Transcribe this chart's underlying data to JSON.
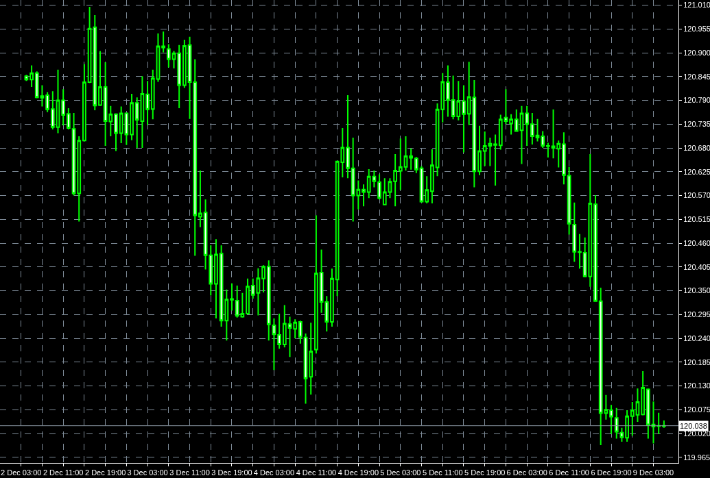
{
  "chart_data": {
    "type": "candlestick",
    "categories": [
      "2 Dec 03:00",
      null,
      null,
      null,
      null,
      null,
      null,
      null,
      "2 Dec 11:00",
      null,
      null,
      null,
      null,
      null,
      null,
      null,
      "2 Dec 19:00",
      null,
      null,
      null,
      null,
      null,
      null,
      null,
      "3 Dec 03:00",
      null,
      null,
      null,
      null,
      null,
      null,
      null,
      "3 Dec 11:00",
      null,
      null,
      null,
      null,
      null,
      null,
      null,
      "3 Dec 19:00",
      null,
      null,
      null,
      null,
      null,
      null,
      null,
      "4 Dec 03:00",
      null,
      null,
      null,
      null,
      null,
      null,
      null,
      "4 Dec 11:00",
      null,
      null,
      null,
      null,
      null,
      null,
      null,
      "4 Dec 19:00",
      null,
      null,
      null,
      null,
      null,
      null,
      null,
      "5 Dec 03:00",
      null,
      null,
      null,
      null,
      null,
      null,
      null,
      "5 Dec 11:00",
      null,
      null,
      null,
      null,
      null,
      null,
      null,
      "5 Dec 19:00",
      null,
      null,
      null,
      null,
      null,
      null,
      null,
      "6 Dec 03:00",
      null,
      null,
      null,
      null,
      null,
      null,
      null,
      "6 Dec 11:00",
      null,
      null,
      null,
      null,
      null,
      null,
      null,
      "6 Dec 19:00",
      null,
      null,
      null,
      null,
      null,
      null,
      null,
      "9 Dec 03:00",
      null,
      null
    ],
    "color": "#00ff00",
    "ohlc": [
      null,
      [
        120.846,
        120.849,
        120.835,
        120.838
      ],
      [
        120.838,
        120.871,
        120.821,
        120.853
      ],
      [
        120.853,
        120.857,
        120.795,
        120.797
      ],
      [
        120.8,
        120.825,
        120.776,
        120.796
      ],
      [
        120.802,
        120.809,
        120.763,
        120.769
      ],
      [
        120.77,
        120.811,
        120.723,
        120.728
      ],
      [
        120.728,
        120.861,
        120.714,
        120.79
      ],
      [
        120.79,
        120.816,
        120.732,
        120.756
      ],
      [
        120.759,
        120.772,
        120.723,
        120.726
      ],
      [
        120.724,
        120.761,
        120.57,
        120.575
      ],
      [
        120.575,
        120.707,
        120.51,
        120.697
      ],
      [
        120.697,
        120.874,
        120.695,
        120.832
      ],
      [
        120.832,
        121.006,
        120.83,
        120.956
      ],
      [
        120.959,
        120.987,
        120.767,
        120.778
      ],
      [
        120.779,
        120.904,
        120.777,
        120.821
      ],
      [
        120.821,
        120.878,
        120.685,
        120.742
      ],
      [
        120.741,
        120.777,
        120.707,
        120.758
      ],
      [
        120.758,
        120.76,
        120.673,
        120.714
      ],
      [
        120.714,
        120.776,
        120.691,
        120.76
      ],
      [
        120.76,
        120.762,
        120.687,
        120.711
      ],
      [
        120.711,
        120.805,
        120.698,
        120.784
      ],
      [
        120.784,
        120.797,
        120.68,
        120.745
      ],
      [
        120.742,
        120.846,
        120.68,
        120.805
      ],
      [
        120.804,
        120.835,
        120.733,
        120.769
      ],
      [
        120.77,
        120.861,
        120.746,
        120.841
      ],
      [
        120.839,
        120.945,
        120.833,
        120.915
      ],
      [
        120.915,
        120.949,
        120.901,
        120.912
      ],
      [
        120.909,
        120.92,
        120.866,
        120.885
      ],
      [
        120.885,
        120.904,
        120.864,
        120.899
      ],
      [
        120.899,
        120.918,
        120.772,
        120.825
      ],
      [
        120.825,
        120.93,
        120.819,
        120.916
      ],
      [
        120.918,
        120.937,
        120.747,
        120.832
      ],
      [
        120.832,
        120.885,
        120.431,
        120.524
      ],
      [
        120.521,
        120.628,
        120.497,
        120.529
      ],
      [
        120.531,
        120.561,
        120.399,
        120.432
      ],
      [
        120.432,
        120.455,
        120.339,
        120.366
      ],
      [
        120.366,
        120.469,
        120.286,
        120.434
      ],
      [
        120.436,
        120.455,
        120.267,
        120.281
      ],
      [
        120.281,
        120.353,
        120.235,
        120.33
      ],
      [
        120.331,
        120.367,
        120.304,
        120.329
      ],
      [
        120.327,
        120.362,
        120.288,
        120.292
      ],
      [
        120.29,
        120.345,
        120.288,
        120.297
      ],
      [
        120.297,
        120.378,
        120.295,
        120.36
      ],
      [
        120.362,
        120.378,
        120.332,
        120.34
      ],
      [
        120.345,
        120.402,
        120.293,
        120.379
      ],
      [
        120.378,
        120.409,
        120.346,
        120.406
      ],
      [
        120.406,
        120.42,
        120.235,
        120.272
      ],
      [
        120.27,
        120.286,
        120.167,
        120.249
      ],
      [
        120.248,
        120.297,
        120.216,
        120.226
      ],
      [
        120.226,
        120.317,
        120.219,
        120.274
      ],
      [
        120.273,
        120.29,
        120.197,
        120.264
      ],
      [
        120.262,
        120.284,
        120.24,
        120.277
      ],
      [
        120.278,
        120.281,
        120.228,
        120.243
      ],
      [
        120.242,
        120.251,
        120.089,
        120.147
      ],
      [
        120.151,
        120.276,
        120.11,
        120.21
      ],
      [
        120.214,
        120.524,
        120.205,
        120.39
      ],
      [
        120.392,
        120.445,
        120.299,
        120.324
      ],
      [
        120.324,
        120.338,
        120.256,
        120.278
      ],
      [
        120.278,
        120.401,
        120.267,
        120.378
      ],
      [
        120.376,
        120.65,
        120.338,
        120.649
      ],
      [
        120.647,
        120.726,
        120.612,
        120.681
      ],
      [
        120.681,
        120.802,
        120.61,
        120.633
      ],
      [
        120.633,
        120.704,
        120.51,
        120.57
      ],
      [
        120.57,
        120.605,
        120.538,
        120.584
      ],
      [
        120.584,
        120.596,
        120.545,
        120.578
      ],
      [
        120.578,
        120.631,
        120.564,
        120.614
      ],
      [
        120.614,
        120.628,
        120.589,
        120.603
      ],
      [
        120.601,
        120.619,
        120.561,
        120.564
      ],
      [
        120.549,
        120.61,
        120.548,
        120.578
      ],
      [
        120.578,
        120.61,
        120.564,
        120.602
      ],
      [
        120.603,
        120.666,
        120.545,
        120.628
      ],
      [
        120.627,
        120.702,
        120.583,
        120.636
      ],
      [
        120.636,
        120.707,
        120.628,
        120.661
      ],
      [
        120.661,
        120.679,
        120.63,
        120.657
      ],
      [
        120.656,
        120.659,
        120.622,
        120.63
      ],
      [
        120.633,
        120.638,
        120.554,
        120.556
      ],
      [
        120.556,
        120.615,
        120.552,
        120.583
      ],
      [
        120.58,
        120.677,
        120.552,
        120.64
      ],
      [
        120.635,
        120.783,
        120.615,
        120.769
      ],
      [
        120.769,
        120.853,
        120.739,
        120.833
      ],
      [
        120.832,
        120.871,
        120.752,
        120.791
      ],
      [
        120.791,
        120.847,
        120.746,
        120.753
      ],
      [
        120.753,
        120.835,
        120.744,
        120.788
      ],
      [
        120.788,
        120.825,
        120.67,
        120.758
      ],
      [
        120.759,
        120.879,
        120.733,
        120.798
      ],
      [
        120.797,
        120.837,
        120.589,
        120.626
      ],
      [
        120.626,
        120.731,
        120.617,
        120.673
      ],
      [
        120.673,
        120.718,
        120.638,
        120.685
      ],
      [
        120.685,
        120.704,
        120.638,
        120.69
      ],
      [
        120.689,
        120.711,
        120.593,
        120.687
      ],
      [
        120.686,
        120.757,
        120.676,
        120.746
      ],
      [
        120.75,
        120.816,
        120.735,
        120.742
      ],
      [
        120.737,
        120.758,
        120.711,
        120.746
      ],
      [
        120.746,
        120.769,
        120.718,
        120.719
      ],
      [
        120.721,
        120.777,
        120.643,
        120.76
      ],
      [
        120.76,
        120.777,
        120.685,
        120.735
      ],
      [
        120.735,
        120.761,
        120.688,
        120.707
      ],
      [
        120.709,
        120.747,
        120.695,
        120.704
      ],
      [
        120.707,
        120.719,
        120.68,
        120.685
      ],
      [
        120.685,
        120.692,
        120.658,
        120.684
      ],
      [
        120.684,
        120.769,
        120.656,
        120.68
      ],
      [
        120.678,
        120.697,
        120.635,
        120.69
      ],
      [
        120.689,
        120.716,
        120.596,
        120.617
      ],
      [
        120.616,
        120.636,
        120.48,
        120.505
      ],
      [
        120.503,
        120.554,
        120.417,
        120.44
      ],
      [
        120.44,
        120.481,
        120.401,
        120.439
      ],
      [
        120.438,
        120.473,
        120.381,
        120.383
      ],
      [
        120.383,
        120.666,
        120.359,
        120.552
      ],
      [
        120.55,
        120.571,
        120.325,
        120.326
      ],
      [
        120.326,
        120.357,
        119.993,
        120.067
      ],
      [
        120.067,
        120.109,
        120.052,
        120.075
      ],
      [
        120.074,
        120.086,
        120.019,
        120.059
      ],
      [
        120.056,
        120.079,
        120.008,
        120.024
      ],
      [
        120.022,
        120.033,
        120.001,
        120.011
      ],
      [
        120.01,
        120.074,
        120.001,
        120.06
      ],
      [
        120.06,
        120.093,
        120.015,
        120.074
      ],
      [
        120.063,
        120.124,
        120.047,
        120.093
      ],
      [
        120.064,
        120.164,
        120.062,
        120.126
      ],
      [
        120.122,
        120.124,
        120.008,
        120.04
      ],
      [
        120.041,
        120.094,
        119.997,
        120.036
      ],
      [
        120.038,
        120.068,
        120.019,
        120.037
      ],
      [
        120.037,
        120.05,
        120.033,
        120.038
      ]
    ],
    "ylim": [
      119.952,
      121.022
    ],
    "yticks": [
      {
        "value": 121.01,
        "label": "121.010"
      },
      {
        "value": 120.955,
        "label": "120.955"
      },
      {
        "value": 120.9,
        "label": "120.900"
      },
      {
        "value": 120.845,
        "label": "120.845"
      },
      {
        "value": 120.79,
        "label": "120.790"
      },
      {
        "value": 120.735,
        "label": "120.735"
      },
      {
        "value": 120.68,
        "label": "120.680"
      },
      {
        "value": 120.625,
        "label": "120.625"
      },
      {
        "value": 120.57,
        "label": "120.570"
      },
      {
        "value": 120.515,
        "label": "120.515"
      },
      {
        "value": 120.46,
        "label": "120.460"
      },
      {
        "value": 120.405,
        "label": "120.405"
      },
      {
        "value": 120.35,
        "label": "120.350"
      },
      {
        "value": 120.295,
        "label": "120.295"
      },
      {
        "value": 120.24,
        "label": "120.240"
      },
      {
        "value": 120.185,
        "label": "120.185"
      },
      {
        "value": 120.13,
        "label": "120.130"
      },
      {
        "value": 120.075,
        "label": "120.075"
      },
      {
        "value": 120.02,
        "label": "120.020"
      },
      {
        "value": 119.965,
        "label": "119.965"
      }
    ],
    "ref_lines": [
      {
        "axis": "y",
        "value": 120.038,
        "label": "120.038",
        "color": "#8c99a6"
      }
    ],
    "grid": true,
    "legend": false
  }
}
